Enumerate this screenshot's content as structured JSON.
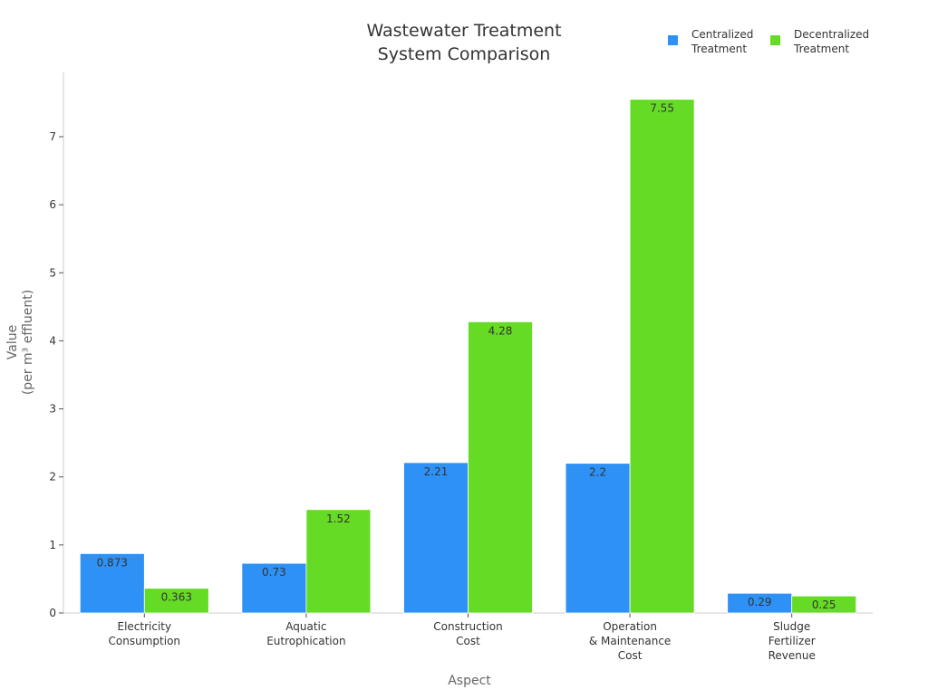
{
  "chart_data": {
    "type": "bar",
    "title": "Wastewater Treatment\nSystem Comparison",
    "xlabel": "Aspect",
    "ylabel": "Value\n(per m³ effluent)",
    "categories": [
      "Electricity\nConsumption",
      "Aquatic\nEutrophication",
      "Construction\nCost",
      "Operation\n& Maintenance\nCost",
      "Sludge\nFertilizer\nRevenue"
    ],
    "series": [
      {
        "name": "Centralized\nTreatment",
        "color": "#2e91f5",
        "values": [
          0.873,
          0.73,
          2.21,
          2.2,
          0.29
        ],
        "labels": [
          "0.873",
          "0.73",
          "2.21",
          "2.2",
          "0.29"
        ]
      },
      {
        "name": "Decentralized\nTreatment",
        "color": "#66db26",
        "values": [
          0.363,
          1.52,
          4.28,
          7.55,
          0.25
        ],
        "labels": [
          "0.363",
          "1.52",
          "4.28",
          "7.55",
          "0.25"
        ]
      }
    ],
    "yticks": [
      0,
      1,
      2,
      3,
      4,
      5,
      6,
      7
    ],
    "ylim": [
      0,
      7.7
    ],
    "grid": false,
    "legend": "top-right"
  }
}
